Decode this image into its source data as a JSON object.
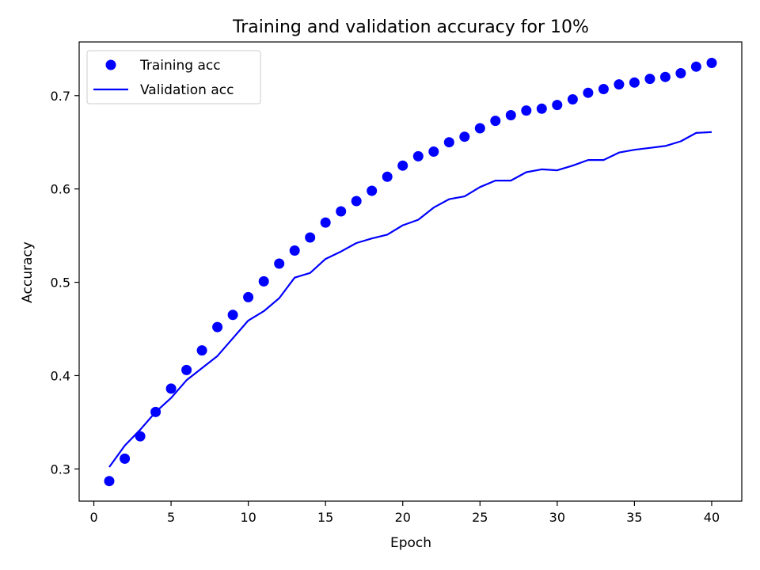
{
  "chart_data": {
    "type": "line",
    "title": "Training and validation accuracy for 10%",
    "xlabel": "Epoch",
    "ylabel": "Accuracy",
    "xlim": [
      -0.95,
      41.95
    ],
    "ylim": [
      0.2655,
      0.7575
    ],
    "xticks": [
      0,
      5,
      10,
      15,
      20,
      25,
      30,
      35,
      40
    ],
    "yticks": [
      0.3,
      0.4,
      0.5,
      0.6,
      0.7
    ],
    "xtick_labels": [
      "0",
      "5",
      "10",
      "15",
      "20",
      "25",
      "30",
      "35",
      "40"
    ],
    "ytick_labels": [
      "0.3",
      "0.4",
      "0.5",
      "0.6",
      "0.7"
    ],
    "grid": false,
    "legend_position": "upper-left",
    "x": [
      1,
      2,
      3,
      4,
      5,
      6,
      7,
      8,
      9,
      10,
      11,
      12,
      13,
      14,
      15,
      16,
      17,
      18,
      19,
      20,
      21,
      22,
      23,
      24,
      25,
      26,
      27,
      28,
      29,
      30,
      31,
      32,
      33,
      34,
      35,
      36,
      37,
      38,
      39,
      40
    ],
    "series": [
      {
        "name": "Training acc",
        "style": "markers",
        "color": "#0000ff",
        "values": [
          0.287,
          0.311,
          0.335,
          0.361,
          0.386,
          0.406,
          0.427,
          0.452,
          0.465,
          0.484,
          0.501,
          0.52,
          0.534,
          0.548,
          0.564,
          0.576,
          0.587,
          0.598,
          0.613,
          0.625,
          0.635,
          0.64,
          0.65,
          0.656,
          0.665,
          0.673,
          0.679,
          0.684,
          0.686,
          0.69,
          0.696,
          0.703,
          0.707,
          0.712,
          0.714,
          0.718,
          0.72,
          0.724,
          0.731,
          0.735
        ]
      },
      {
        "name": "Validation acc",
        "style": "line",
        "color": "#0000ff",
        "values": [
          0.302,
          0.325,
          0.342,
          0.361,
          0.376,
          0.395,
          0.408,
          0.421,
          0.44,
          0.459,
          0.469,
          0.483,
          0.505,
          0.51,
          0.525,
          0.533,
          0.542,
          0.547,
          0.551,
          0.561,
          0.567,
          0.58,
          0.589,
          0.592,
          0.602,
          0.609,
          0.609,
          0.618,
          0.621,
          0.62,
          0.625,
          0.631,
          0.631,
          0.639,
          0.642,
          0.644,
          0.646,
          0.651,
          0.66,
          0.661
        ]
      }
    ]
  }
}
